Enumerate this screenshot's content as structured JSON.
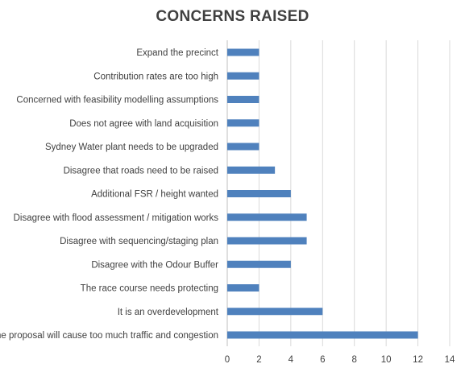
{
  "chart_data": {
    "type": "bar",
    "orientation": "horizontal",
    "title": "CONCERNS RAISED",
    "xlabel": "",
    "ylabel": "",
    "xlim": [
      0,
      14
    ],
    "ticks": [
      0,
      2,
      4,
      6,
      8,
      10,
      12,
      14
    ],
    "grid": true,
    "legend": "none",
    "bar_color": "#4f81bd",
    "categories": [
      "Expand the precinct",
      "Contribution rates are too high",
      "Concerned with feasibility modelling assumptions",
      "Does not agree with land acquisition",
      "Sydney Water plant needs to be upgraded",
      "Disagree that roads need to be raised",
      "Additional FSR / height wanted",
      "Disagree with flood assessment / mitigation works",
      "Disagree with sequencing/staging plan",
      "Disagree with the Odour Buffer",
      "The race course needs protecting",
      "It is an overdevelopment",
      "The proposal will cause too much traffic and congestion"
    ],
    "values": [
      2,
      2,
      2,
      2,
      2,
      3,
      4,
      5,
      5,
      4,
      2,
      6,
      12
    ]
  }
}
